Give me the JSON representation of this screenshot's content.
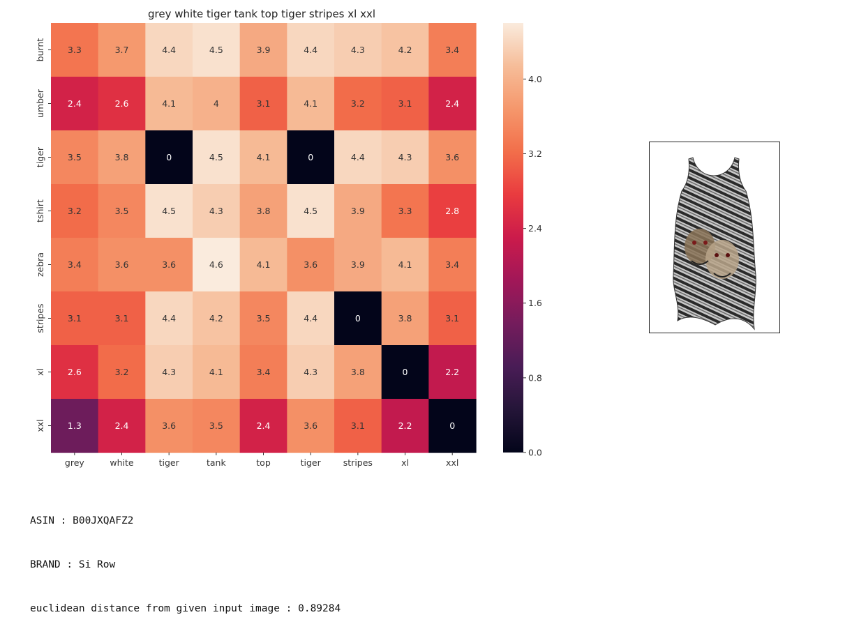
{
  "chart_data": {
    "type": "heatmap",
    "title": "grey  white tiger tank top tiger stripes xl  xxl",
    "x_labels": [
      "grey",
      "white",
      "tiger",
      "tank",
      "top",
      "tiger",
      "stripes",
      "xl",
      "xxl"
    ],
    "y_labels": [
      "burnt",
      "umber",
      "tiger",
      "tshirt",
      "zebra",
      "stripes",
      "xl",
      "xxl"
    ],
    "values": [
      [
        "3.3",
        "3.7",
        "4.4",
        "4.5",
        "3.9",
        "4.4",
        "4.3",
        "4.2",
        "3.4"
      ],
      [
        "2.4",
        "2.6",
        "4.1",
        "4",
        "3.1",
        "4.1",
        "3.2",
        "3.1",
        "2.4"
      ],
      [
        "3.5",
        "3.8",
        "0",
        "4.5",
        "4.1",
        "0",
        "4.4",
        "4.3",
        "3.6"
      ],
      [
        "3.2",
        "3.5",
        "4.5",
        "4.3",
        "3.8",
        "4.5",
        "3.9",
        "3.3",
        "2.8"
      ],
      [
        "3.4",
        "3.6",
        "3.6",
        "4.6",
        "4.1",
        "3.6",
        "3.9",
        "4.1",
        "3.4"
      ],
      [
        "3.1",
        "3.1",
        "4.4",
        "4.2",
        "3.5",
        "4.4",
        "0",
        "3.8",
        "3.1"
      ],
      [
        "2.6",
        "3.2",
        "4.3",
        "4.1",
        "3.4",
        "4.3",
        "3.8",
        "0",
        "2.2"
      ],
      [
        "1.3",
        "2.4",
        "3.6",
        "3.5",
        "2.4",
        "3.6",
        "3.1",
        "2.2",
        "0"
      ]
    ],
    "colorbar": {
      "min": 0,
      "max": 4.6,
      "ticks": [
        "0.0",
        "0.8",
        "1.6",
        "2.4",
        "3.2",
        "4.0"
      ],
      "colormap": "rocket"
    }
  },
  "info": {
    "asin": "ASIN : B00JXQAFZ2",
    "brand": "BRAND : Si Row",
    "distance": "euclidean distance from given input image : 0.89284"
  },
  "product_image": {
    "icon": "tiger-print-tank-top-icon"
  }
}
